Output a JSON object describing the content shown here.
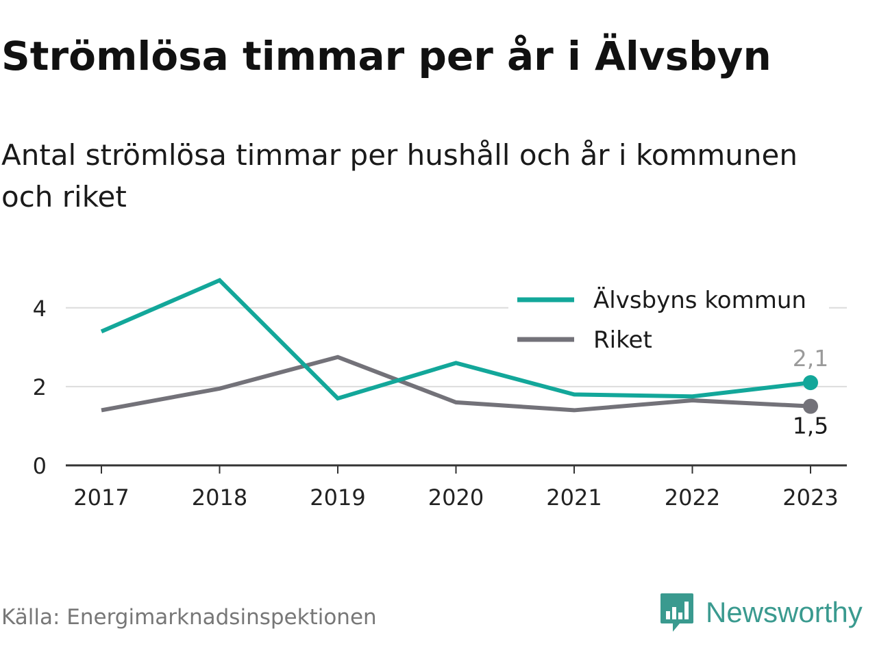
{
  "header": {
    "title": "Strömlösa timmar per år i Älvsbyn",
    "subtitle": "Antal strömlösa timmar per hushåll och år i kommunen och riket"
  },
  "footer": {
    "source": "Källa: Energimarknadsinspektionen",
    "brand": "Newsworthy",
    "brand_icon": "newsworthy-logo-icon"
  },
  "chart_data": {
    "type": "line",
    "title": "Strömlösa timmar per år i Älvsbyn",
    "subtitle": "Antal strömlösa timmar per hushåll och år i kommunen och riket",
    "categories": [
      "2017",
      "2018",
      "2019",
      "2020",
      "2021",
      "2022",
      "2023"
    ],
    "y_ticks": [
      "0",
      "2",
      "4"
    ],
    "ylim": [
      0,
      4.9
    ],
    "grid": true,
    "legend_position": "top-right",
    "series": [
      {
        "name": "Älvsbyns kommun",
        "color": "#13a79a",
        "values": [
          3.4,
          4.7,
          1.7,
          2.6,
          1.8,
          1.75,
          2.1
        ],
        "end_label": "2,1"
      },
      {
        "name": "Riket",
        "color": "#737279",
        "values": [
          1.4,
          1.95,
          2.75,
          1.6,
          1.4,
          1.65,
          1.5
        ],
        "end_label": "1,5"
      }
    ]
  }
}
